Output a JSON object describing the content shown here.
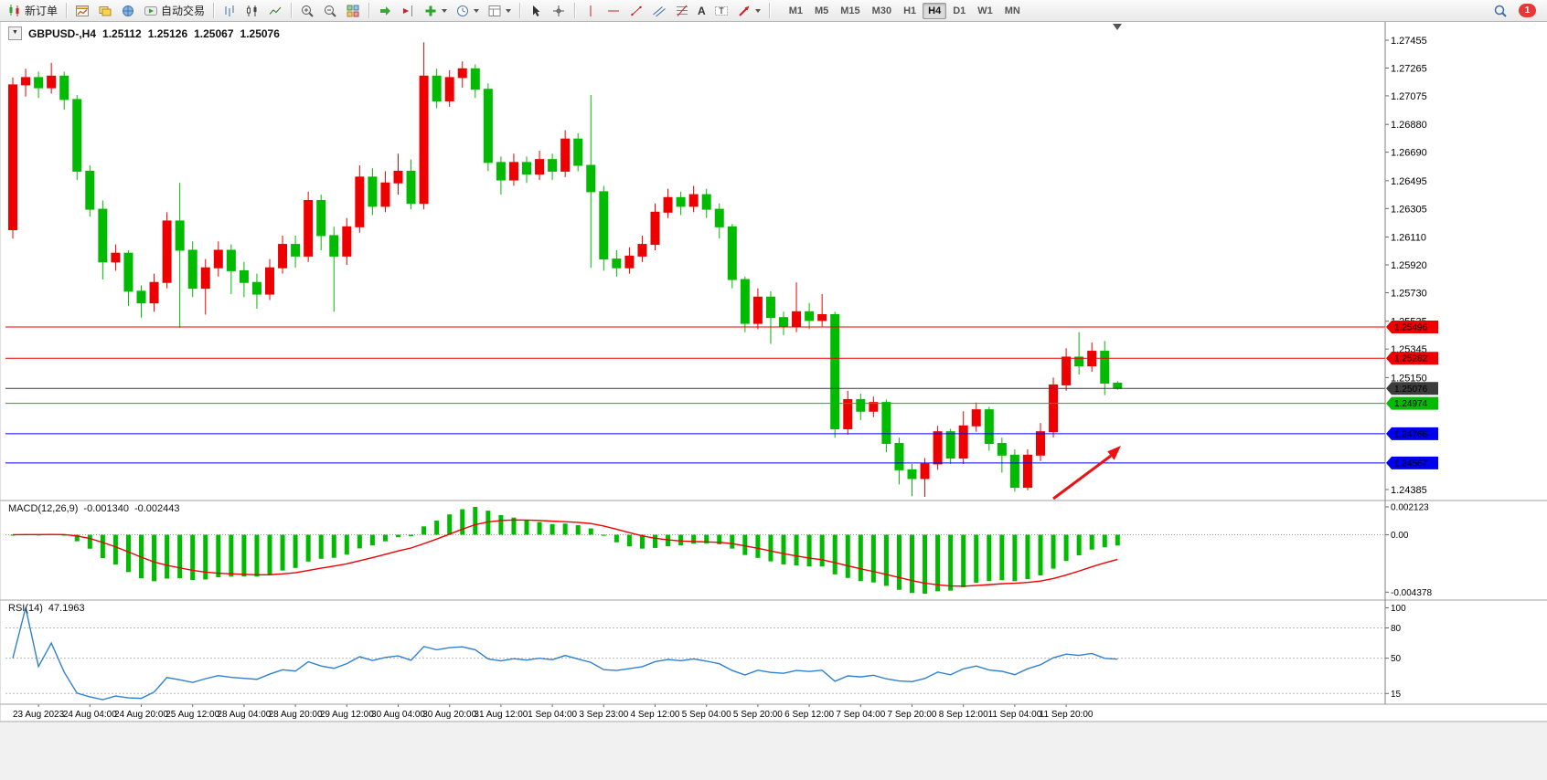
{
  "window": {
    "badge_count": "1"
  },
  "toolbar": {
    "new_order_label": "新订单",
    "autotrading_label": "自动交易",
    "timeframes": [
      "M1",
      "M5",
      "M15",
      "M30",
      "H1",
      "H4",
      "D1",
      "W1",
      "MN"
    ],
    "active_timeframe": "H4",
    "icon_names": [
      "new-order-icon",
      "chart-window-icon",
      "profiles-icon",
      "terminal-icon",
      "autotrading-icon",
      "bar-chart-icon",
      "candlestick-chart-icon",
      "line-chart-icon",
      "zoom-in-icon",
      "zoom-out-icon",
      "tile-windows-icon",
      "auto-scroll-icon",
      "chart-shift-icon",
      "indicators-icon",
      "periods-icon",
      "templates-icon",
      "cursor-icon",
      "crosshair-icon",
      "vertical-line-icon",
      "horizontal-line-icon",
      "trendline-icon",
      "channel-icon",
      "fibonacci-icon",
      "text-icon",
      "text-label-icon",
      "arrow-tools-icon",
      "search-icon",
      "alert-badge"
    ]
  },
  "chart": {
    "quote": {
      "symbol": "GBPUSD-,H4",
      "open": "1.25112",
      "high": "1.25126",
      "low": "1.25067",
      "close": "1.25076"
    },
    "price_max": 1.2758,
    "price_min": 1.2431,
    "price_scale_labels": [
      "1.27455",
      "1.27265",
      "1.27075",
      "1.26880",
      "1.26690",
      "1.26495",
      "1.26305",
      "1.26110",
      "1.25920",
      "1.25730",
      "1.25535",
      "1.25345",
      "1.25150",
      "1.24385"
    ],
    "hlines": [
      {
        "price": 1.25496,
        "label": "1.25496",
        "color": "#ee0000"
      },
      {
        "price": 1.25282,
        "label": "1.25282",
        "color": "#ee0000"
      },
      {
        "price": 1.25076,
        "label": "1.25076",
        "color": "#3c3c3c",
        "is_current": true
      },
      {
        "price": 1.24974,
        "label": "1.24974",
        "color": "#00bb00"
      },
      {
        "price": 1.24766,
        "label": "1.24766",
        "color": "#0000ee"
      },
      {
        "price": 1.24567,
        "label": "1.24567",
        "color": "#0000ee"
      }
    ],
    "time_labels": [
      "23 Aug 2023",
      "24 Aug 04:00",
      "24 Aug 20:00",
      "25 Aug 12:00",
      "28 Aug 04:00",
      "28 Aug 20:00",
      "29 Aug 12:00",
      "30 Aug 04:00",
      "30 Aug 20:00",
      "31 Aug 12:00",
      "1 Sep 04:00",
      "3 Sep 23:00",
      "4 Sep 12:00",
      "5 Sep 04:00",
      "5 Sep 20:00",
      "6 Sep 12:00",
      "7 Sep 04:00",
      "7 Sep 20:00",
      "8 Sep 12:00",
      "11 Sep 04:00",
      "11 Sep 20:00"
    ]
  },
  "chart_data": {
    "type": "candlestick",
    "symbol": "GBPUSD-",
    "timeframe": "H4",
    "up_color_means": "bullish (red, CN convention)",
    "ohlc": [
      [
        1.2616,
        1.272,
        1.261,
        1.2715
      ],
      [
        1.2715,
        1.2726,
        1.2707,
        1.272
      ],
      [
        1.272,
        1.2724,
        1.2706,
        1.2713
      ],
      [
        1.2713,
        1.273,
        1.2709,
        1.2721
      ],
      [
        1.2721,
        1.2724,
        1.2698,
        1.2705
      ],
      [
        1.2705,
        1.2708,
        1.265,
        1.2656
      ],
      [
        1.2656,
        1.266,
        1.2625,
        1.263
      ],
      [
        1.263,
        1.2636,
        1.2582,
        1.2594
      ],
      [
        1.2594,
        1.2606,
        1.2588,
        1.26
      ],
      [
        1.26,
        1.2602,
        1.2564,
        1.2574
      ],
      [
        1.2574,
        1.2578,
        1.2556,
        1.2566
      ],
      [
        1.2566,
        1.2586,
        1.256,
        1.258
      ],
      [
        1.258,
        1.2628,
        1.2576,
        1.2622
      ],
      [
        1.2622,
        1.2648,
        1.2549,
        1.2602
      ],
      [
        1.2602,
        1.2608,
        1.257,
        1.2576
      ],
      [
        1.2576,
        1.2596,
        1.2558,
        1.259
      ],
      [
        1.259,
        1.2608,
        1.2584,
        1.2602
      ],
      [
        1.2602,
        1.2606,
        1.2572,
        1.2588
      ],
      [
        1.2588,
        1.2594,
        1.257,
        1.258
      ],
      [
        1.258,
        1.2586,
        1.2562,
        1.2572
      ],
      [
        1.2572,
        1.2596,
        1.2568,
        1.259
      ],
      [
        1.259,
        1.2612,
        1.2586,
        1.2606
      ],
      [
        1.2606,
        1.2612,
        1.259,
        1.2598
      ],
      [
        1.2598,
        1.2642,
        1.2594,
        1.2636
      ],
      [
        1.2636,
        1.264,
        1.2602,
        1.2612
      ],
      [
        1.2612,
        1.2618,
        1.256,
        1.2598
      ],
      [
        1.2598,
        1.2624,
        1.2592,
        1.2618
      ],
      [
        1.2618,
        1.266,
        1.2614,
        1.2652
      ],
      [
        1.2652,
        1.2658,
        1.2626,
        1.2632
      ],
      [
        1.2632,
        1.2656,
        1.2628,
        1.2648
      ],
      [
        1.2648,
        1.2668,
        1.264,
        1.2656
      ],
      [
        1.2656,
        1.2664,
        1.263,
        1.2634
      ],
      [
        1.2634,
        1.2744,
        1.263,
        1.2721
      ],
      [
        1.2721,
        1.2726,
        1.2699,
        1.2704
      ],
      [
        1.2704,
        1.2725,
        1.27,
        1.272
      ],
      [
        1.272,
        1.2731,
        1.2713,
        1.2726
      ],
      [
        1.2726,
        1.2729,
        1.2706,
        1.2712
      ],
      [
        1.2712,
        1.2716,
        1.2656,
        1.2662
      ],
      [
        1.2662,
        1.2666,
        1.264,
        1.265
      ],
      [
        1.265,
        1.2668,
        1.2646,
        1.2662
      ],
      [
        1.2662,
        1.2666,
        1.2648,
        1.2654
      ],
      [
        1.2654,
        1.267,
        1.265,
        1.2664
      ],
      [
        1.2664,
        1.2668,
        1.265,
        1.2656
      ],
      [
        1.2656,
        1.2684,
        1.2652,
        1.2678
      ],
      [
        1.2678,
        1.2682,
        1.2656,
        1.266
      ],
      [
        1.266,
        1.2708,
        1.259,
        1.2642
      ],
      [
        1.2642,
        1.2646,
        1.2588,
        1.2596
      ],
      [
        1.2596,
        1.2602,
        1.2584,
        1.259
      ],
      [
        1.259,
        1.2604,
        1.2586,
        1.2598
      ],
      [
        1.2598,
        1.2612,
        1.2594,
        1.2606
      ],
      [
        1.2606,
        1.2634,
        1.2602,
        1.2628
      ],
      [
        1.2628,
        1.2644,
        1.2624,
        1.2638
      ],
      [
        1.2638,
        1.2642,
        1.2626,
        1.2632
      ],
      [
        1.2632,
        1.2646,
        1.2628,
        1.264
      ],
      [
        1.264,
        1.2644,
        1.2624,
        1.263
      ],
      [
        1.263,
        1.2634,
        1.261,
        1.2618
      ],
      [
        1.2618,
        1.262,
        1.2576,
        1.2582
      ],
      [
        1.2582,
        1.2584,
        1.2546,
        1.2552
      ],
      [
        1.2552,
        1.2576,
        1.2548,
        1.257
      ],
      [
        1.257,
        1.2574,
        1.2538,
        1.2556
      ],
      [
        1.2556,
        1.256,
        1.2544,
        1.255
      ],
      [
        1.255,
        1.258,
        1.2546,
        1.256
      ],
      [
        1.256,
        1.2566,
        1.2548,
        1.2554
      ],
      [
        1.2554,
        1.2572,
        1.255,
        1.2558
      ],
      [
        1.2558,
        1.256,
        1.2474,
        1.248
      ],
      [
        1.248,
        1.2506,
        1.2476,
        1.25
      ],
      [
        1.25,
        1.2504,
        1.2486,
        1.2492
      ],
      [
        1.2492,
        1.2502,
        1.2488,
        1.2498
      ],
      [
        1.2498,
        1.25,
        1.2464,
        1.247
      ],
      [
        1.247,
        1.2474,
        1.2442,
        1.2452
      ],
      [
        1.2452,
        1.2456,
        1.2434,
        1.2446
      ],
      [
        1.2446,
        1.246,
        1.24335,
        1.2456
      ],
      [
        1.2456,
        1.2482,
        1.2452,
        1.2478
      ],
      [
        1.2478,
        1.248,
        1.2456,
        1.246
      ],
      [
        1.246,
        1.2492,
        1.2456,
        1.2482
      ],
      [
        1.2482,
        1.2498,
        1.2478,
        1.2493
      ],
      [
        1.2493,
        1.2495,
        1.2465,
        1.247
      ],
      [
        1.247,
        1.2474,
        1.245,
        1.2462
      ],
      [
        1.2462,
        1.2466,
        1.2437,
        1.244
      ],
      [
        1.244,
        1.2466,
        1.2438,
        1.2462
      ],
      [
        1.2462,
        1.2484,
        1.2458,
        1.2478
      ],
      [
        1.2478,
        1.2515,
        1.2474,
        1.251
      ],
      [
        1.251,
        1.2535,
        1.2506,
        1.2529
      ],
      [
        1.2529,
        1.2546,
        1.2517,
        1.2523
      ],
      [
        1.2523,
        1.2539,
        1.2519,
        1.2533
      ],
      [
        1.2533,
        1.254,
        1.2503,
        1.25112
      ],
      [
        1.25112,
        1.25126,
        1.25067,
        1.25076
      ]
    ]
  },
  "macd": {
    "label": "MACD(12,26,9)",
    "macd_value": "-0.001340",
    "signal_value": "-0.002443",
    "scale_labels": [
      "0.002123",
      "0.00",
      "-0.004378"
    ],
    "params": {
      "fast": 12,
      "slow": 26,
      "signal": 9
    }
  },
  "rsi": {
    "label": "RSI(14)",
    "value": "47.1963",
    "period": 14,
    "scale_labels": [
      "100",
      "80",
      "50",
      "15"
    ],
    "levels": [
      80,
      50,
      15
    ]
  },
  "colors": {
    "up": "#ee0000",
    "down": "#00bb00",
    "current_price": "#3c3c3c",
    "macd_hist": "#00bb00",
    "macd_signal": "#ee0000",
    "rsi_line": "#3080d0",
    "arrow": "#ee1111"
  }
}
